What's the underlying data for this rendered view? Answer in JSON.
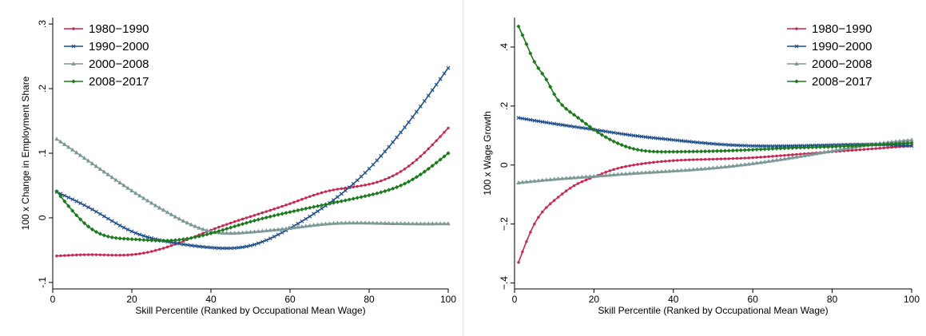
{
  "chart_data": [
    {
      "type": "line",
      "title": "",
      "xlabel": "Skill Percentile (Ranked by Occupational Mean Wage)",
      "ylabel": "100 x Change in Employment Share",
      "xlim": [
        0,
        100
      ],
      "ylim": [
        -0.11,
        0.31
      ],
      "xticks": [
        0,
        20,
        40,
        60,
        80,
        100
      ],
      "xtick_labels": [
        "0",
        "20",
        "40",
        "60",
        "80",
        "100"
      ],
      "yticks": [
        -0.1,
        0,
        0.1,
        0.2,
        0.3
      ],
      "ytick_labels": [
        "-.1",
        "0",
        ".1",
        ".2",
        ".3"
      ],
      "legend_position": "top-left",
      "grid": false,
      "series": [
        {
          "name": "1980−1990",
          "color": "#c8254f",
          "marker": "circle",
          "x": [
            1,
            10,
            20,
            30,
            40,
            50,
            60,
            70,
            80,
            90,
            100
          ],
          "values": [
            -0.059,
            -0.057,
            -0.057,
            -0.043,
            -0.019,
            0.002,
            0.022,
            0.042,
            0.052,
            0.08,
            0.139
          ]
        },
        {
          "name": "1990−2000",
          "color": "#1f4e8c",
          "marker": "x",
          "x": [
            1,
            10,
            20,
            30,
            40,
            50,
            60,
            70,
            80,
            90,
            100
          ],
          "values": [
            0.04,
            0.013,
            -0.021,
            -0.038,
            -0.046,
            -0.043,
            -0.016,
            0.023,
            0.076,
            0.148,
            0.232
          ]
        },
        {
          "name": "2000−2008",
          "color": "#7a9896",
          "marker": "triangle",
          "x": [
            1,
            10,
            20,
            30,
            40,
            50,
            60,
            70,
            80,
            90,
            100
          ],
          "values": [
            0.122,
            0.084,
            0.042,
            0.005,
            -0.021,
            -0.022,
            -0.016,
            -0.009,
            -0.008,
            -0.009,
            -0.009
          ]
        },
        {
          "name": "2008−2017",
          "color": "#1b7a1b",
          "marker": "diamond",
          "x": [
            1,
            10,
            20,
            30,
            40,
            50,
            60,
            70,
            80,
            90,
            100
          ],
          "values": [
            0.041,
            -0.018,
            -0.033,
            -0.035,
            -0.024,
            -0.006,
            0.009,
            0.022,
            0.035,
            0.056,
            0.1
          ]
        }
      ]
    },
    {
      "type": "line",
      "title": "",
      "xlabel": "Skill Percentile (Ranked by Occupational Mean Wage)",
      "ylabel": "100 x Wage Growth",
      "xlim": [
        0,
        100
      ],
      "ylim": [
        -0.42,
        0.5
      ],
      "xticks": [
        0,
        20,
        40,
        60,
        80,
        100
      ],
      "xtick_labels": [
        "0",
        "20",
        "40",
        "60",
        "80",
        "100"
      ],
      "yticks": [
        -0.4,
        -0.2,
        0,
        0.2,
        0.4
      ],
      "ytick_labels": [
        "−.4",
        "−.2",
        "0",
        ".2",
        ".4"
      ],
      "legend_position": "top-right",
      "grid": false,
      "series": [
        {
          "name": "1980−1990",
          "color": "#c8254f",
          "marker": "circle",
          "x": [
            1,
            5,
            10,
            15,
            20,
            25,
            30,
            40,
            50,
            60,
            70,
            80,
            90,
            100
          ],
          "values": [
            -0.33,
            -0.2,
            -0.12,
            -0.07,
            -0.04,
            -0.015,
            0.0,
            0.015,
            0.02,
            0.025,
            0.035,
            0.045,
            0.055,
            0.065
          ]
        },
        {
          "name": "1990−2000",
          "color": "#1f4e8c",
          "marker": "x",
          "x": [
            1,
            10,
            20,
            30,
            40,
            50,
            60,
            70,
            80,
            90,
            100
          ],
          "values": [
            0.16,
            0.14,
            0.12,
            0.1,
            0.085,
            0.072,
            0.065,
            0.065,
            0.068,
            0.07,
            0.065
          ]
        },
        {
          "name": "2000−2008",
          "color": "#7a9896",
          "marker": "triangle",
          "x": [
            1,
            10,
            20,
            30,
            40,
            50,
            60,
            70,
            80,
            90,
            100
          ],
          "values": [
            -0.06,
            -0.048,
            -0.038,
            -0.028,
            -0.02,
            -0.01,
            0.005,
            0.025,
            0.048,
            0.07,
            0.085
          ]
        },
        {
          "name": "2008−2017",
          "color": "#1b7a1b",
          "marker": "diamond",
          "x": [
            1,
            3,
            5,
            8,
            10,
            15,
            20,
            25,
            30,
            40,
            50,
            60,
            70,
            80,
            90,
            100
          ],
          "values": [
            0.47,
            0.41,
            0.35,
            0.29,
            0.24,
            0.17,
            0.12,
            0.08,
            0.055,
            0.045,
            0.047,
            0.052,
            0.058,
            0.062,
            0.068,
            0.075
          ]
        }
      ]
    }
  ]
}
